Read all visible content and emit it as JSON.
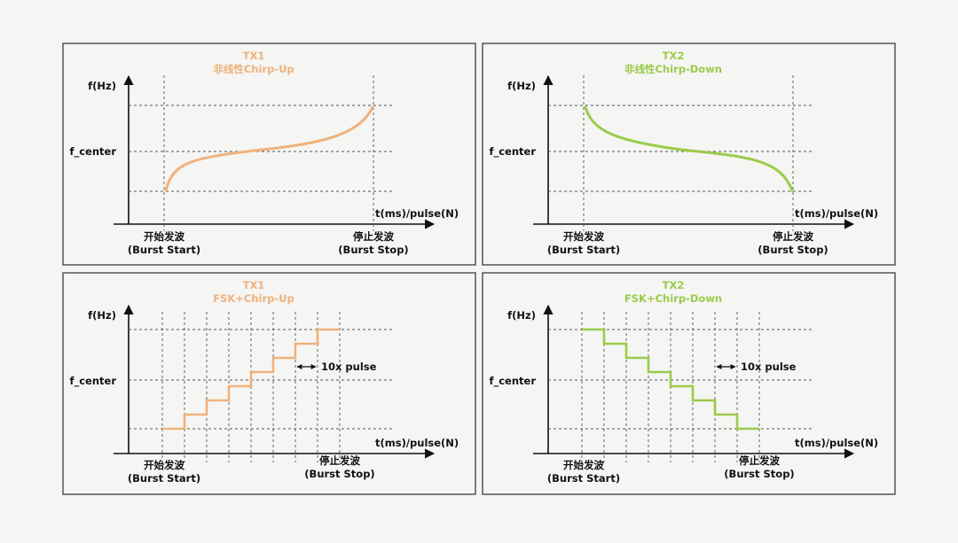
{
  "colors": {
    "tx1": "#EFB27C",
    "tx2": "#9BCB4A",
    "axis": "#111111",
    "frame": "#555555"
  },
  "panels": [
    {
      "id": "tx1-chirp-up",
      "title": "TX1",
      "subtitle": "非线性Chirp-Up",
      "color_key": "tx1",
      "type": "curve-up",
      "y_label": "f(Hz)",
      "x_label": "t(ms)/pulse(N)",
      "center_label": "f_center",
      "start_label": "开始发波",
      "start_sub": "(Burst Start)",
      "stop_label": "停止发波",
      "stop_sub": "(Burst Stop)",
      "pulse_label": ""
    },
    {
      "id": "tx2-chirp-down",
      "title": "TX2",
      "subtitle": "非线性Chirp-Down",
      "color_key": "tx2",
      "type": "curve-down",
      "y_label": "f(Hz)",
      "x_label": "t(ms)/pulse(N)",
      "center_label": "f_center",
      "start_label": "开始发波",
      "start_sub": "(Burst Start)",
      "stop_label": "停止发波",
      "stop_sub": "(Burst Stop)",
      "pulse_label": ""
    },
    {
      "id": "tx1-fsk-up",
      "title": "TX1",
      "subtitle": "FSK+Chirp-Up",
      "color_key": "tx1",
      "type": "steps-up",
      "y_label": "f(Hz)",
      "x_label": "t(ms)/pulse(N)",
      "center_label": "f_center",
      "start_label": "开始发波",
      "start_sub": "(Burst Start)",
      "stop_label": "停止发波",
      "stop_sub": "(Burst Stop)",
      "pulse_label": "10x pulse"
    },
    {
      "id": "tx2-fsk-down",
      "title": "TX2",
      "subtitle": "FSK+Chirp-Down",
      "color_key": "tx2",
      "type": "steps-down",
      "y_label": "f(Hz)",
      "x_label": "t(ms)/pulse(N)",
      "center_label": "f_center",
      "start_label": "开始发波",
      "start_sub": "(Burst Start)",
      "stop_label": "停止发波",
      "stop_sub": "(Burst Stop)",
      "pulse_label": "10x pulse"
    }
  ]
}
